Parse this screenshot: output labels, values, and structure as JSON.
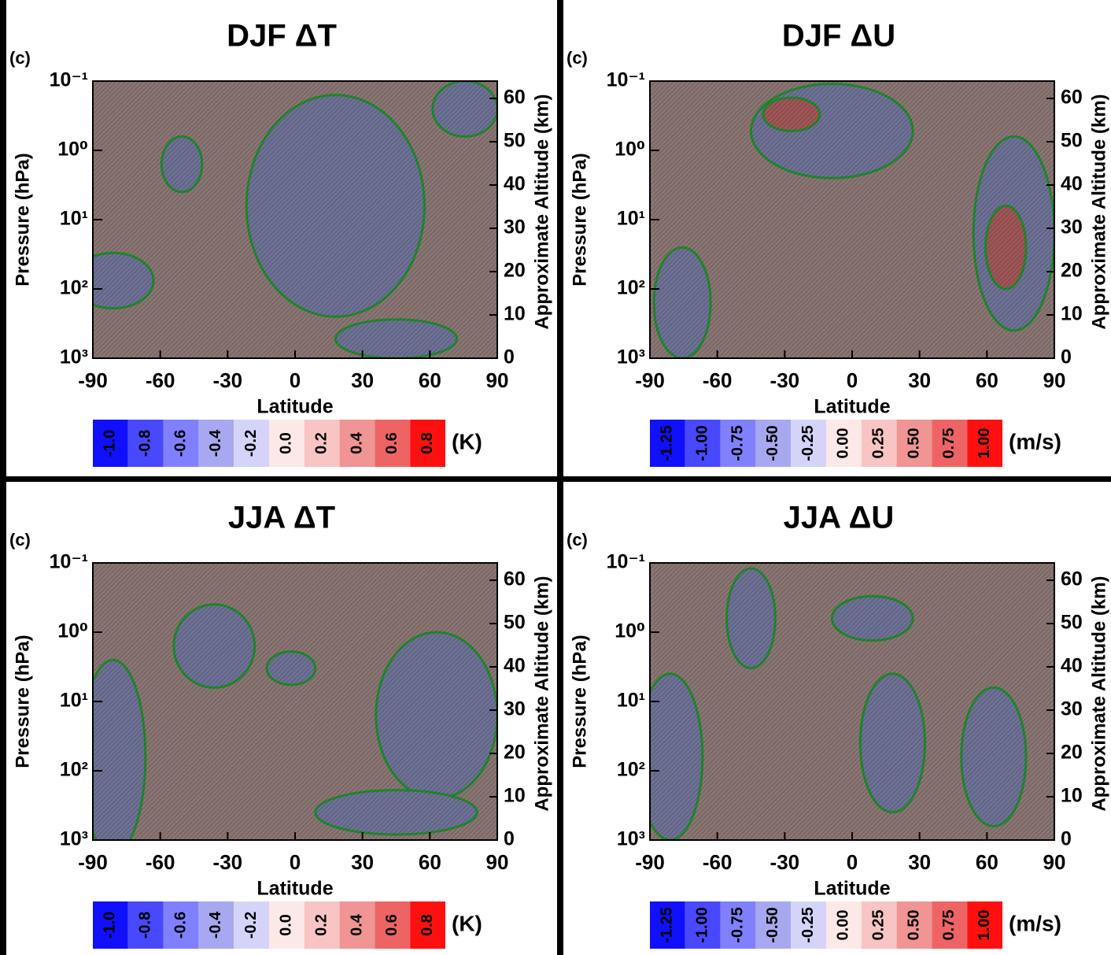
{
  "chart_data": [
    {
      "type": "contour",
      "title": "DJF ΔT",
      "panel_label": "(c)",
      "xlabel": "Latitude",
      "ylabel": "Pressure (hPa)",
      "y2label": "Approximate Altitude (km)",
      "xlim": [
        -90,
        90
      ],
      "xticks": [
        -90,
        -60,
        -30,
        0,
        30,
        60,
        90
      ],
      "log_y": true,
      "ylim": [
        1000,
        0.1
      ],
      "yticks": [
        {
          "value": 1000,
          "label": "10³"
        },
        {
          "value": 100,
          "label": "10²"
        },
        {
          "value": 10,
          "label": "10¹"
        },
        {
          "value": 1,
          "label": "10⁰"
        },
        {
          "value": 0.1,
          "label": "10⁻¹"
        }
      ],
      "y2lim": [
        0,
        64
      ],
      "y2ticks": [
        0,
        10,
        20,
        30,
        40,
        50,
        60
      ],
      "colorbar": {
        "unit": "(K)",
        "colors": [
          "#1010ff",
          "#4848ff",
          "#8080ff",
          "#a8a8f0",
          "#d4d4fa",
          "#fde8e8",
          "#f8c4c4",
          "#f09494",
          "#ee6464",
          "#ff1010"
        ],
        "ticks": [
          {
            "value": -1.0,
            "label": "-1.0"
          },
          {
            "value": -0.8,
            "label": "-0.8"
          },
          {
            "value": -0.6,
            "label": "-0.6"
          },
          {
            "value": -0.4,
            "label": "-0.4"
          },
          {
            "value": -0.2,
            "label": "-0.2"
          },
          {
            "value": 0.0,
            "label": "0.0"
          },
          {
            "value": 0.2,
            "label": "0.2"
          },
          {
            "value": 0.4,
            "label": "0.4"
          },
          {
            "value": 0.6,
            "label": "0.6"
          },
          {
            "value": 0.8,
            "label": "0.8"
          }
        ]
      }
    },
    {
      "type": "contour",
      "title": "DJF ΔU",
      "panel_label": "(c)",
      "xlabel": "Latitude",
      "ylabel": "Pressure (hPa)",
      "y2label": "Approximate Altitude (km)",
      "xlim": [
        -90,
        90
      ],
      "xticks": [
        -90,
        -60,
        -30,
        0,
        30,
        60,
        90
      ],
      "log_y": true,
      "ylim": [
        1000,
        0.1
      ],
      "yticks": [
        {
          "value": 1000,
          "label": "10³"
        },
        {
          "value": 100,
          "label": "10²"
        },
        {
          "value": 10,
          "label": "10¹"
        },
        {
          "value": 1,
          "label": "10⁰"
        },
        {
          "value": 0.1,
          "label": "10⁻¹"
        }
      ],
      "y2lim": [
        0,
        64
      ],
      "y2ticks": [
        0,
        10,
        20,
        30,
        40,
        50,
        60
      ],
      "colorbar": {
        "unit": "(m/s)",
        "colors": [
          "#1010ff",
          "#4848ff",
          "#8080ff",
          "#a8a8f0",
          "#d4d4fa",
          "#fde8e8",
          "#f8c4c4",
          "#f09494",
          "#ee6464",
          "#ff1010"
        ],
        "ticks": [
          {
            "value": -1.25,
            "label": "-1.25"
          },
          {
            "value": -1.0,
            "label": "-1.00"
          },
          {
            "value": -0.75,
            "label": "-0.75"
          },
          {
            "value": -0.5,
            "label": "-0.50"
          },
          {
            "value": -0.25,
            "label": "-0.25"
          },
          {
            "value": 0.0,
            "label": "0.00"
          },
          {
            "value": 0.25,
            "label": "0.25"
          },
          {
            "value": 0.5,
            "label": "0.50"
          },
          {
            "value": 0.75,
            "label": "0.75"
          },
          {
            "value": 1.0,
            "label": "1.00"
          }
        ]
      }
    },
    {
      "type": "contour",
      "title": "JJA ΔT",
      "panel_label": "(c)",
      "xlabel": "Latitude",
      "ylabel": "Pressure (hPa)",
      "y2label": "Approximate Altitude (km)",
      "xlim": [
        -90,
        90
      ],
      "xticks": [
        -90,
        -60,
        -30,
        0,
        30,
        60,
        90
      ],
      "log_y": true,
      "ylim": [
        1000,
        0.1
      ],
      "yticks": [
        {
          "value": 1000,
          "label": "10³"
        },
        {
          "value": 100,
          "label": "10²"
        },
        {
          "value": 10,
          "label": "10¹"
        },
        {
          "value": 1,
          "label": "10⁰"
        },
        {
          "value": 0.1,
          "label": "10⁻¹"
        }
      ],
      "y2lim": [
        0,
        64
      ],
      "y2ticks": [
        0,
        10,
        20,
        30,
        40,
        50,
        60
      ],
      "colorbar": {
        "unit": "(K)",
        "colors": [
          "#1010ff",
          "#4848ff",
          "#8080ff",
          "#a8a8f0",
          "#d4d4fa",
          "#fde8e8",
          "#f8c4c4",
          "#f09494",
          "#ee6464",
          "#ff1010"
        ],
        "ticks": [
          {
            "value": -1.0,
            "label": "-1.0"
          },
          {
            "value": -0.8,
            "label": "-0.8"
          },
          {
            "value": -0.6,
            "label": "-0.6"
          },
          {
            "value": -0.4,
            "label": "-0.4"
          },
          {
            "value": -0.2,
            "label": "-0.2"
          },
          {
            "value": 0.0,
            "label": "0.0"
          },
          {
            "value": 0.2,
            "label": "0.2"
          },
          {
            "value": 0.4,
            "label": "0.4"
          },
          {
            "value": 0.6,
            "label": "0.6"
          },
          {
            "value": 0.8,
            "label": "0.8"
          }
        ]
      }
    },
    {
      "type": "contour",
      "title": "JJA ΔU",
      "panel_label": "(c)",
      "xlabel": "Latitude",
      "ylabel": "Pressure (hPa)",
      "y2label": "Approximate Altitude (km)",
      "xlim": [
        -90,
        90
      ],
      "xticks": [
        -90,
        -60,
        -30,
        0,
        30,
        60,
        90
      ],
      "log_y": true,
      "ylim": [
        1000,
        0.1
      ],
      "yticks": [
        {
          "value": 1000,
          "label": "10³"
        },
        {
          "value": 100,
          "label": "10²"
        },
        {
          "value": 10,
          "label": "10¹"
        },
        {
          "value": 1,
          "label": "10⁰"
        },
        {
          "value": 0.1,
          "label": "10⁻¹"
        }
      ],
      "y2lim": [
        0,
        64
      ],
      "y2ticks": [
        0,
        10,
        20,
        30,
        40,
        50,
        60
      ],
      "colorbar": {
        "unit": "(m/s)",
        "colors": [
          "#1010ff",
          "#4848ff",
          "#8080ff",
          "#a8a8f0",
          "#d4d4fa",
          "#fde8e8",
          "#f8c4c4",
          "#f09494",
          "#ee6464",
          "#ff1010"
        ],
        "ticks": [
          {
            "value": -1.25,
            "label": "-1.25"
          },
          {
            "value": -1.0,
            "label": "-1.00"
          },
          {
            "value": -0.75,
            "label": "-0.75"
          },
          {
            "value": -0.5,
            "label": "-0.50"
          },
          {
            "value": -0.25,
            "label": "-0.25"
          },
          {
            "value": 0.0,
            "label": "0.00"
          },
          {
            "value": 0.25,
            "label": "0.25"
          },
          {
            "value": 0.5,
            "label": "0.50"
          },
          {
            "value": 0.75,
            "label": "0.75"
          },
          {
            "value": 1.0,
            "label": "1.00"
          }
        ]
      }
    }
  ]
}
